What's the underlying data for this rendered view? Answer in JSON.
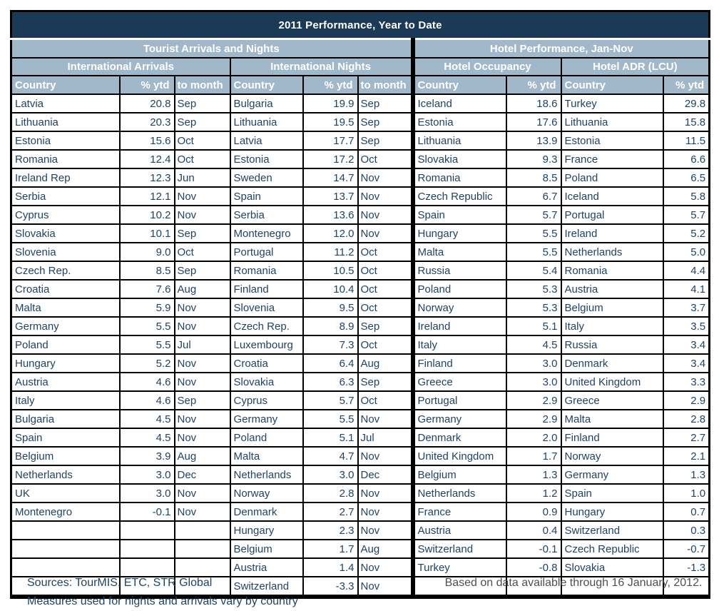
{
  "title": "2011 Performance, Year to Date",
  "row_count": 27,
  "colors": {
    "navy": "#1B3A55",
    "header_blue": "#A0B8C9",
    "data_text": "#1F4361",
    "border": "#000000"
  },
  "section_headers": {
    "left": "Tourist Arrivals and Nights",
    "right": "Hotel Performance, Jan-Nov"
  },
  "subsections": [
    "International Arrivals",
    "International Nights",
    "Hotel Occupancy",
    "Hotel ADR (LCU)"
  ],
  "columns": [
    "Country",
    "% ytd",
    "to month",
    "Country",
    "% ytd",
    "to month",
    "Country",
    "% ytd",
    "Country",
    "% ytd"
  ],
  "tables": {
    "international_arrivals": {
      "rows": [
        {
          "country": "Latvia",
          "ytd": "20.8",
          "month": "Sep"
        },
        {
          "country": "Lithuania",
          "ytd": "20.3",
          "month": "Sep"
        },
        {
          "country": "Estonia",
          "ytd": "15.6",
          "month": "Oct"
        },
        {
          "country": "Romania",
          "ytd": "12.4",
          "month": "Oct"
        },
        {
          "country": "Ireland Rep",
          "ytd": "12.3",
          "month": "Jun"
        },
        {
          "country": "Serbia",
          "ytd": "12.1",
          "month": "Nov"
        },
        {
          "country": "Cyprus",
          "ytd": "10.2",
          "month": "Nov"
        },
        {
          "country": "Slovakia",
          "ytd": "10.1",
          "month": "Sep"
        },
        {
          "country": "Slovenia",
          "ytd": "9.0",
          "month": "Oct"
        },
        {
          "country": "Czech Rep.",
          "ytd": "8.5",
          "month": "Sep"
        },
        {
          "country": "Croatia",
          "ytd": "7.6",
          "month": "Aug"
        },
        {
          "country": "Malta",
          "ytd": "5.9",
          "month": "Nov"
        },
        {
          "country": "Germany",
          "ytd": "5.5",
          "month": "Nov"
        },
        {
          "country": "Poland",
          "ytd": "5.5",
          "month": "Jul"
        },
        {
          "country": "Hungary",
          "ytd": "5.2",
          "month": "Nov"
        },
        {
          "country": "Austria",
          "ytd": "4.6",
          "month": "Nov"
        },
        {
          "country": "Italy",
          "ytd": "4.6",
          "month": "Sep"
        },
        {
          "country": "Bulgaria",
          "ytd": "4.5",
          "month": "Nov"
        },
        {
          "country": "Spain",
          "ytd": "4.5",
          "month": "Nov"
        },
        {
          "country": "Belgium",
          "ytd": "3.9",
          "month": "Aug"
        },
        {
          "country": "Netherlands",
          "ytd": "3.0",
          "month": "Dec"
        },
        {
          "country": "UK",
          "ytd": "3.0",
          "month": "Nov"
        },
        {
          "country": "Montenegro",
          "ytd": "-0.1",
          "month": "Nov"
        }
      ]
    },
    "international_nights": {
      "rows": [
        {
          "country": "Bulgaria",
          "ytd": "19.9",
          "month": "Sep"
        },
        {
          "country": "Lithuania",
          "ytd": "19.5",
          "month": "Sep"
        },
        {
          "country": "Latvia",
          "ytd": "17.7",
          "month": "Sep"
        },
        {
          "country": "Estonia",
          "ytd": "17.2",
          "month": "Oct"
        },
        {
          "country": "Sweden",
          "ytd": "14.7",
          "month": "Nov"
        },
        {
          "country": "Spain",
          "ytd": "13.7",
          "month": "Nov"
        },
        {
          "country": "Serbia",
          "ytd": "13.6",
          "month": "Nov"
        },
        {
          "country": "Montenegro",
          "ytd": "12.0",
          "month": "Nov"
        },
        {
          "country": "Portugal",
          "ytd": "11.2",
          "month": "Oct"
        },
        {
          "country": "Romania",
          "ytd": "10.5",
          "month": "Oct"
        },
        {
          "country": "Finland",
          "ytd": "10.4",
          "month": "Oct"
        },
        {
          "country": "Slovenia",
          "ytd": "9.5",
          "month": "Oct"
        },
        {
          "country": "Czech Rep.",
          "ytd": "8.9",
          "month": "Sep"
        },
        {
          "country": "Luxembourg",
          "ytd": "7.3",
          "month": "Oct"
        },
        {
          "country": "Croatia",
          "ytd": "6.4",
          "month": "Aug"
        },
        {
          "country": "Slovakia",
          "ytd": "6.3",
          "month": "Sep"
        },
        {
          "country": "Cyprus",
          "ytd": "5.7",
          "month": "Oct"
        },
        {
          "country": "Germany",
          "ytd": "5.5",
          "month": "Nov"
        },
        {
          "country": "Poland",
          "ytd": "5.1",
          "month": "Jul"
        },
        {
          "country": "Malta",
          "ytd": "4.7",
          "month": "Nov"
        },
        {
          "country": "Netherlands",
          "ytd": "3.0",
          "month": "Dec"
        },
        {
          "country": "Norway",
          "ytd": "2.8",
          "month": "Nov"
        },
        {
          "country": "Denmark",
          "ytd": "2.7",
          "month": "Nov"
        },
        {
          "country": "Hungary",
          "ytd": "2.3",
          "month": "Nov"
        },
        {
          "country": "Belgium",
          "ytd": "1.7",
          "month": "Aug"
        },
        {
          "country": "Austria",
          "ytd": "1.4",
          "month": "Nov"
        },
        {
          "country": "Switzerland",
          "ytd": "-3.3",
          "month": "Nov"
        }
      ]
    },
    "hotel_occupancy": {
      "rows": [
        {
          "country": "Iceland",
          "ytd": "18.6"
        },
        {
          "country": "Estonia",
          "ytd": "17.6"
        },
        {
          "country": "Lithuania",
          "ytd": "13.9"
        },
        {
          "country": "Slovakia",
          "ytd": "9.3"
        },
        {
          "country": "Romania",
          "ytd": "8.5"
        },
        {
          "country": "Czech Republic",
          "ytd": "6.7"
        },
        {
          "country": "Spain",
          "ytd": "5.7"
        },
        {
          "country": "Hungary",
          "ytd": "5.5"
        },
        {
          "country": "Malta",
          "ytd": "5.5"
        },
        {
          "country": "Russia",
          "ytd": "5.4"
        },
        {
          "country": "Poland",
          "ytd": "5.3"
        },
        {
          "country": "Norway",
          "ytd": "5.3"
        },
        {
          "country": "Ireland",
          "ytd": "5.1"
        },
        {
          "country": "Italy",
          "ytd": "4.5"
        },
        {
          "country": "Finland",
          "ytd": "3.0"
        },
        {
          "country": "Greece",
          "ytd": "3.0"
        },
        {
          "country": "Portugal",
          "ytd": "2.9"
        },
        {
          "country": "Germany",
          "ytd": "2.9"
        },
        {
          "country": "Denmark",
          "ytd": "2.0"
        },
        {
          "country": "United Kingdom",
          "ytd": "1.7"
        },
        {
          "country": "Belgium",
          "ytd": "1.3"
        },
        {
          "country": "Netherlands",
          "ytd": "1.2"
        },
        {
          "country": "France",
          "ytd": "0.9"
        },
        {
          "country": "Austria",
          "ytd": "0.4"
        },
        {
          "country": "Switzerland",
          "ytd": "-0.1"
        },
        {
          "country": "Turkey",
          "ytd": "-0.8"
        }
      ]
    },
    "hotel_adr": {
      "rows": [
        {
          "country": "Turkey",
          "ytd": "29.8"
        },
        {
          "country": "Lithuania",
          "ytd": "15.8"
        },
        {
          "country": "Estonia",
          "ytd": "11.5"
        },
        {
          "country": "France",
          "ytd": "6.6"
        },
        {
          "country": "Poland",
          "ytd": "6.5"
        },
        {
          "country": "Iceland",
          "ytd": "5.8"
        },
        {
          "country": "Portugal",
          "ytd": "5.7"
        },
        {
          "country": "Ireland",
          "ytd": "5.2"
        },
        {
          "country": "Netherlands",
          "ytd": "5.0"
        },
        {
          "country": "Romania",
          "ytd": "4.4"
        },
        {
          "country": "Austria",
          "ytd": "4.1"
        },
        {
          "country": "Belgium",
          "ytd": "3.7"
        },
        {
          "country": "Italy",
          "ytd": "3.5"
        },
        {
          "country": "Russia",
          "ytd": "3.4"
        },
        {
          "country": "Denmark",
          "ytd": "3.4"
        },
        {
          "country": "United Kingdom",
          "ytd": "3.3"
        },
        {
          "country": "Greece",
          "ytd": "2.9"
        },
        {
          "country": "Malta",
          "ytd": "2.8"
        },
        {
          "country": "Finland",
          "ytd": "2.7"
        },
        {
          "country": "Norway",
          "ytd": "2.1"
        },
        {
          "country": "Germany",
          "ytd": "1.3"
        },
        {
          "country": "Spain",
          "ytd": "1.0"
        },
        {
          "country": "Hungary",
          "ytd": "0.7"
        },
        {
          "country": "Switzerland",
          "ytd": "0.3"
        },
        {
          "country": "Czech Republic",
          "ytd": "-0.7"
        },
        {
          "country": "Slovakia",
          "ytd": "-1.3"
        }
      ]
    }
  },
  "footer": {
    "sources": "Sources: TourMIS, ETC, STR Global",
    "measures": "Measures used for nights and arrivals vary by country",
    "based_on": "Based on data available through 16 January, 2012."
  }
}
